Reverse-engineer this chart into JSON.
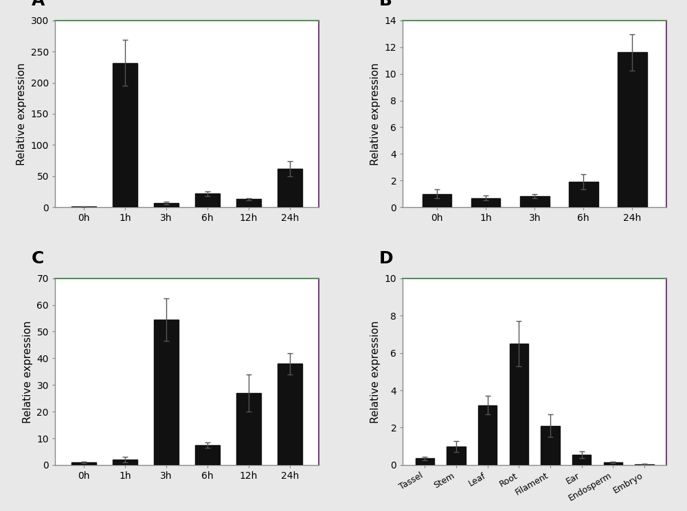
{
  "panel_A": {
    "label": "A",
    "categories": [
      "0h",
      "1h",
      "3h",
      "6h",
      "12h",
      "24h"
    ],
    "values": [
      1.0,
      232,
      7,
      22,
      13,
      62
    ],
    "errors": [
      0.5,
      37,
      2,
      4,
      2,
      12
    ],
    "ylim": [
      0,
      300
    ],
    "yticks": [
      0,
      50,
      100,
      150,
      200,
      250,
      300
    ],
    "ylabel": "Relative expression",
    "bar_color": "#111111"
  },
  "panel_B": {
    "label": "B",
    "categories": [
      "0h",
      "1h",
      "3h",
      "6h",
      "24h"
    ],
    "values": [
      1.0,
      0.7,
      0.85,
      1.9,
      11.6
    ],
    "errors": [
      0.35,
      0.2,
      0.15,
      0.55,
      1.35
    ],
    "ylim": [
      0,
      14
    ],
    "yticks": [
      0,
      2,
      4,
      6,
      8,
      10,
      12,
      14
    ],
    "ylabel": "Relative expression",
    "bar_color": "#111111"
  },
  "panel_C": {
    "label": "C",
    "categories": [
      "0h",
      "1h",
      "3h",
      "6h",
      "12h",
      "24h"
    ],
    "values": [
      1.0,
      2.0,
      54.5,
      7.5,
      27,
      38
    ],
    "errors": [
      0.3,
      1.0,
      8.0,
      1.0,
      7.0,
      4.0
    ],
    "ylim": [
      0,
      70
    ],
    "yticks": [
      0,
      10,
      20,
      30,
      40,
      50,
      60,
      70
    ],
    "ylabel": "Relative expression",
    "bar_color": "#111111"
  },
  "panel_D": {
    "label": "D",
    "categories": [
      "Tassel",
      "Stem",
      "Leaf",
      "Root",
      "Filament",
      "Ear",
      "Endosperm",
      "Embryo"
    ],
    "values": [
      0.35,
      1.0,
      3.2,
      6.5,
      2.1,
      0.55,
      0.15,
      0.05
    ],
    "errors": [
      0.1,
      0.3,
      0.5,
      1.2,
      0.6,
      0.2,
      0.05,
      0.02
    ],
    "ylim": [
      0,
      10
    ],
    "yticks": [
      0,
      2,
      4,
      6,
      8,
      10
    ],
    "ylabel": "Relative expression",
    "bar_color": "#111111"
  },
  "background_color": "#e8e8e8",
  "plot_bg_color": "#ffffff",
  "label_fontsize": 18,
  "tick_fontsize": 10,
  "ylabel_fontsize": 11,
  "bar_width": 0.6,
  "spine_top_color": "#5a8f5e",
  "spine_right_color": "#7b3f7d",
  "spine_bottom_color": "#888888",
  "spine_left_color": "#888888"
}
